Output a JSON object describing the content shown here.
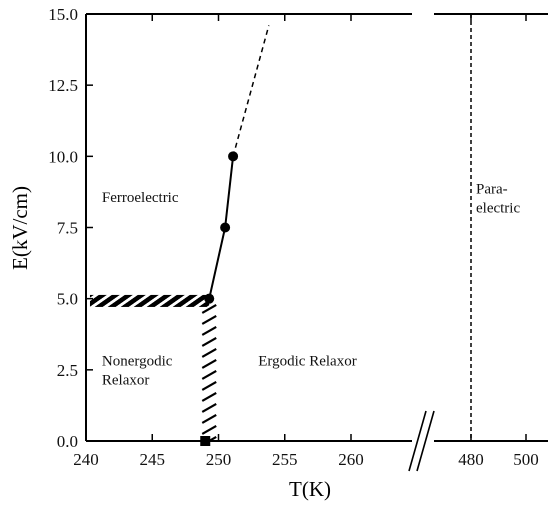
{
  "chart_data": {
    "type": "scatter",
    "xlabel": "T(K)",
    "ylabel": "E(kV/cm)",
    "xlim": [
      240,
      264
    ],
    "ylim": [
      0,
      15
    ],
    "x_tick_labels": [
      "240",
      "245",
      "250",
      "255",
      "260"
    ],
    "x_break_tick_labels": [
      "480",
      "500"
    ],
    "y_tick_labels": [
      "0.0",
      "2.5",
      "5.0",
      "7.5",
      "10.0",
      "12.5",
      "15.0"
    ],
    "axis_break": true,
    "grid": false,
    "series": [
      {
        "marker": "circle",
        "line": "solid",
        "x": [
          249.3,
          250.5,
          251.1
        ],
        "y": [
          5.0,
          7.5,
          10.0
        ]
      },
      {
        "marker": "square",
        "x": [
          249.0
        ],
        "y": [
          0.0
        ]
      }
    ],
    "boundaries": [
      {
        "style": "dashed",
        "x": [
          251.1,
          253.8
        ],
        "y": [
          10.0,
          14.6
        ]
      },
      {
        "style": "hatched",
        "x": [
          240.3,
          249.3
        ],
        "y": [
          4.85,
          4.85
        ]
      },
      {
        "style": "hatched",
        "x": [
          249.0,
          249.3
        ],
        "y": [
          0.0,
          4.85
        ]
      },
      {
        "style": "dashed-vertical",
        "x_label": "480",
        "y": [
          0,
          15
        ]
      }
    ],
    "region_labels": [
      {
        "lines": [
          "Ferroelectric"
        ],
        "x": 241.2,
        "y": 8.4
      },
      {
        "lines": [
          "Para-",
          "electric"
        ],
        "x_label": "480",
        "y": 8.7
      },
      {
        "lines": [
          "Nonergodic",
          "Relaxor"
        ],
        "x": 241.2,
        "y": 2.65
      },
      {
        "lines": [
          "Ergodic Relaxor"
        ],
        "x": 253.0,
        "y": 2.65
      }
    ],
    "colors": {
      "line": "#000000",
      "marker": "#000000",
      "background": "#ffffff"
    }
  }
}
